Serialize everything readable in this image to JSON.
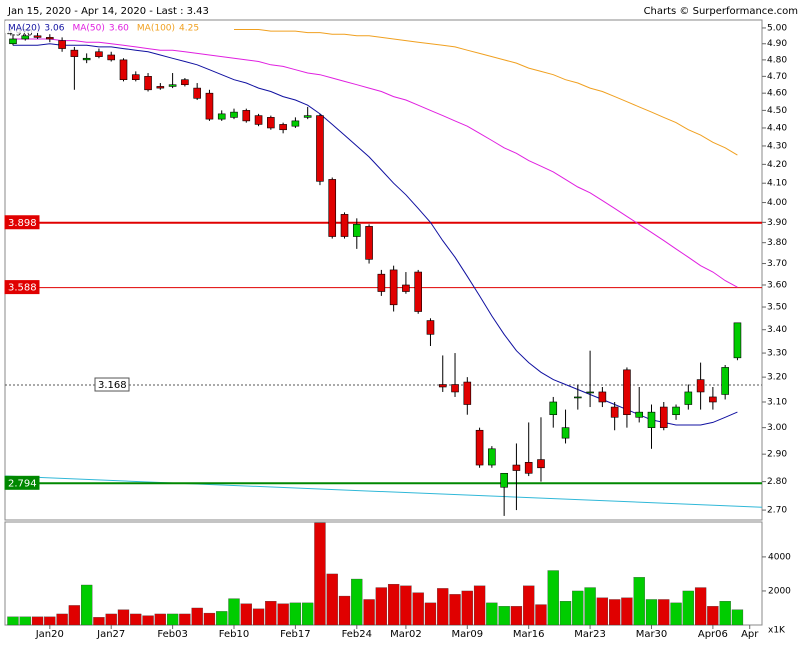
{
  "chart_data": {
    "type": "candlestick",
    "title": "Jan 15, 2020 - Apr 14, 2020 - Last : 3.43",
    "credit": "Charts © Surperformance.com",
    "annotation": "4.970",
    "log_scale": true,
    "up_color": "#00cc00",
    "down_color": "#e00000",
    "ohlc": [
      [
        4.9,
        4.96,
        4.89,
        4.93
      ],
      [
        4.93,
        4.96,
        4.92,
        4.95
      ],
      [
        4.95,
        4.97,
        4.93,
        4.94
      ],
      [
        4.94,
        4.96,
        4.91,
        4.93
      ],
      [
        4.92,
        4.94,
        4.85,
        4.87
      ],
      [
        4.86,
        4.88,
        4.62,
        4.82
      ],
      [
        4.8,
        4.84,
        4.78,
        4.81
      ],
      [
        4.85,
        4.87,
        4.81,
        4.82
      ],
      [
        4.83,
        4.85,
        4.79,
        4.8
      ],
      [
        4.8,
        4.81,
        4.67,
        4.68
      ],
      [
        4.71,
        4.73,
        4.67,
        4.68
      ],
      [
        4.7,
        4.72,
        4.61,
        4.62
      ],
      [
        4.64,
        4.66,
        4.62,
        4.63
      ],
      [
        4.64,
        4.72,
        4.63,
        4.65
      ],
      [
        4.68,
        4.69,
        4.64,
        4.65
      ],
      [
        4.63,
        4.66,
        4.56,
        4.57
      ],
      [
        4.6,
        4.62,
        4.44,
        4.45
      ],
      [
        4.45,
        4.5,
        4.44,
        4.48
      ],
      [
        4.46,
        4.51,
        4.45,
        4.49
      ],
      [
        4.5,
        4.51,
        4.43,
        4.44
      ],
      [
        4.47,
        4.48,
        4.41,
        4.42
      ],
      [
        4.46,
        4.47,
        4.39,
        4.4
      ],
      [
        4.42,
        4.43,
        4.37,
        4.39
      ],
      [
        4.41,
        4.46,
        4.4,
        4.44
      ],
      [
        4.46,
        4.52,
        4.45,
        4.47
      ],
      [
        4.47,
        4.48,
        4.09,
        4.11
      ],
      [
        4.12,
        4.13,
        3.82,
        3.83
      ],
      [
        3.94,
        3.95,
        3.82,
        3.83
      ],
      [
        3.83,
        3.92,
        3.77,
        3.89
      ],
      [
        3.88,
        3.89,
        3.7,
        3.72
      ],
      [
        3.65,
        3.67,
        3.55,
        3.57
      ],
      [
        3.67,
        3.69,
        3.48,
        3.51
      ],
      [
        3.6,
        3.66,
        3.56,
        3.57
      ],
      [
        3.66,
        3.67,
        3.47,
        3.48
      ],
      [
        3.44,
        3.45,
        3.33,
        3.38
      ],
      [
        3.17,
        3.29,
        3.14,
        3.16
      ],
      [
        3.17,
        3.3,
        3.12,
        3.14
      ],
      [
        3.18,
        3.2,
        3.05,
        3.09
      ],
      [
        2.99,
        3.0,
        2.85,
        2.86
      ],
      [
        2.86,
        2.93,
        2.85,
        2.92
      ],
      [
        2.78,
        2.83,
        2.68,
        2.83
      ],
      [
        2.86,
        2.94,
        2.7,
        2.84
      ],
      [
        2.87,
        3.02,
        2.82,
        2.83
      ],
      [
        2.88,
        3.04,
        2.8,
        2.85
      ],
      [
        3.05,
        3.12,
        3.0,
        3.1
      ],
      [
        2.96,
        3.07,
        2.94,
        3.0
      ],
      [
        3.12,
        3.17,
        3.07,
        3.12
      ],
      [
        3.14,
        3.31,
        3.08,
        3.14
      ],
      [
        3.14,
        3.16,
        3.08,
        3.1
      ],
      [
        3.08,
        3.1,
        2.99,
        3.04
      ],
      [
        3.23,
        3.24,
        3.0,
        3.05
      ],
      [
        3.04,
        3.16,
        3.02,
        3.06
      ],
      [
        3.0,
        3.09,
        2.92,
        3.06
      ],
      [
        3.08,
        3.1,
        2.99,
        3.0
      ],
      [
        3.05,
        3.09,
        3.03,
        3.08
      ],
      [
        3.09,
        3.17,
        3.07,
        3.14
      ],
      [
        3.19,
        3.26,
        3.07,
        3.14
      ],
      [
        3.12,
        3.16,
        3.07,
        3.1
      ],
      [
        3.13,
        3.25,
        3.11,
        3.24
      ],
      [
        3.28,
        3.43,
        3.27,
        3.43
      ]
    ],
    "series": [
      {
        "name": "MA(20)",
        "legend_value": "3.06",
        "color": "#1010a0",
        "values": [
          4.89,
          4.89,
          4.89,
          4.9,
          4.89,
          4.89,
          4.89,
          4.88,
          4.88,
          4.87,
          4.86,
          4.85,
          4.83,
          4.81,
          4.79,
          4.77,
          4.74,
          4.71,
          4.68,
          4.66,
          4.63,
          4.61,
          4.58,
          4.56,
          4.53,
          4.48,
          4.42,
          4.36,
          4.3,
          4.24,
          4.17,
          4.1,
          4.04,
          3.97,
          3.9,
          3.81,
          3.73,
          3.64,
          3.55,
          3.46,
          3.38,
          3.31,
          3.26,
          3.22,
          3.19,
          3.17,
          3.15,
          3.13,
          3.11,
          3.09,
          3.07,
          3.05,
          3.03,
          3.02,
          3.01,
          3.01,
          3.01,
          3.02,
          3.04,
          3.06
        ]
      },
      {
        "name": "MA(50)",
        "legend_value": "3.60",
        "color": "#e020e0",
        "values": [
          4.93,
          4.93,
          4.93,
          4.93,
          4.92,
          4.92,
          4.91,
          4.91,
          4.9,
          4.89,
          4.88,
          4.87,
          4.86,
          4.86,
          4.85,
          4.84,
          4.83,
          4.82,
          4.81,
          4.8,
          4.79,
          4.77,
          4.76,
          4.74,
          4.72,
          4.71,
          4.69,
          4.67,
          4.65,
          4.63,
          4.61,
          4.58,
          4.56,
          4.53,
          4.5,
          4.47,
          4.44,
          4.41,
          4.37,
          4.33,
          4.29,
          4.26,
          4.22,
          4.19,
          4.16,
          4.12,
          4.08,
          4.05,
          4.01,
          3.97,
          3.93,
          3.89,
          3.85,
          3.81,
          3.77,
          3.73,
          3.69,
          3.66,
          3.62,
          3.59
        ]
      },
      {
        "name": "MA(100)",
        "legend_value": "4.25",
        "color": "#f0a020",
        "values": [
          null,
          null,
          null,
          null,
          null,
          null,
          null,
          null,
          null,
          null,
          null,
          null,
          null,
          null,
          null,
          null,
          null,
          null,
          4.99,
          4.99,
          4.99,
          4.98,
          4.98,
          4.98,
          4.97,
          4.97,
          4.96,
          4.96,
          4.95,
          4.95,
          4.94,
          4.93,
          4.92,
          4.91,
          4.9,
          4.89,
          4.88,
          4.86,
          4.84,
          4.82,
          4.8,
          4.78,
          4.75,
          4.73,
          4.71,
          4.68,
          4.66,
          4.63,
          4.61,
          4.58,
          4.55,
          4.52,
          4.49,
          4.46,
          4.43,
          4.39,
          4.36,
          4.32,
          4.29,
          4.25
        ]
      }
    ],
    "levels": [
      {
        "value": 3.898,
        "color": "#e00000",
        "width": 2
      },
      {
        "value": 3.588,
        "color": "#e00000",
        "width": 1
      },
      {
        "value": 3.168,
        "color": "#555555",
        "width": 1,
        "dashed": true
      },
      {
        "value": 2.794,
        "color": "#008800",
        "width": 2
      }
    ],
    "trendline": {
      "color": "#30b8d8",
      "values": [
        2.82,
        2.71
      ]
    },
    "xlim": [
      -0.65,
      61.0
    ],
    "xticks": [
      {
        "value": 3,
        "label": "Jan20"
      },
      {
        "value": 8,
        "label": "Jan27"
      },
      {
        "value": 13,
        "label": "Feb03"
      },
      {
        "value": 18,
        "label": "Feb10"
      },
      {
        "value": 23,
        "label": "Feb17"
      },
      {
        "value": 28,
        "label": "Feb24"
      },
      {
        "value": 32,
        "label": "Mar02"
      },
      {
        "value": 37,
        "label": "Mar09"
      },
      {
        "value": 42,
        "label": "Mar16"
      },
      {
        "value": 47,
        "label": "Mar23"
      },
      {
        "value": 52,
        "label": "Mar30"
      },
      {
        "value": 57,
        "label": "Apr06"
      },
      {
        "value": 60,
        "label": "Apr"
      }
    ],
    "ylim": [
      2.666,
      5.051
    ],
    "yticks": [
      {
        "value": 5.0,
        "label": "5.00"
      },
      {
        "value": 4.9,
        "label": "4.90"
      },
      {
        "value": 4.8,
        "label": "4.80"
      },
      {
        "value": 4.7,
        "label": "4.70"
      },
      {
        "value": 4.6,
        "label": "4.60"
      },
      {
        "value": 4.5,
        "label": "4.50"
      },
      {
        "value": 4.4,
        "label": "4.40"
      },
      {
        "value": 4.3,
        "label": "4.30"
      },
      {
        "value": 4.2,
        "label": "4.20"
      },
      {
        "value": 4.1,
        "label": "4.10"
      },
      {
        "value": 4.0,
        "label": "4.00"
      },
      {
        "value": 3.9,
        "label": "3.90"
      },
      {
        "value": 3.8,
        "label": "3.80"
      },
      {
        "value": 3.7,
        "label": "3.70"
      },
      {
        "value": 3.6,
        "label": "3.60"
      },
      {
        "value": 3.5,
        "label": "3.50"
      },
      {
        "value": 3.4,
        "label": "3.40"
      },
      {
        "value": 3.3,
        "label": "3.30"
      },
      {
        "value": 3.2,
        "label": "3.20"
      },
      {
        "value": 3.1,
        "label": "3.10"
      },
      {
        "value": 3.0,
        "label": "3.00"
      },
      {
        "value": 2.9,
        "label": "2.90"
      },
      {
        "value": 2.8,
        "label": "2.80"
      },
      {
        "value": 2.7,
        "label": "2.70"
      }
    ],
    "volume": {
      "unit_label": "x1K",
      "ylim": [
        0,
        6050
      ],
      "yticks": [
        2000,
        4000
      ],
      "values": [
        480,
        480,
        480,
        480,
        650,
        1150,
        2350,
        450,
        650,
        900,
        650,
        550,
        650,
        650,
        650,
        1000,
        700,
        800,
        1550,
        1250,
        950,
        1400,
        1250,
        1300,
        1300,
        6000,
        3000,
        1700,
        2700,
        1500,
        2200,
        2400,
        2300,
        1900,
        1300,
        2150,
        1800,
        2000,
        2300,
        1300,
        1100,
        1100,
        2300,
        1200,
        3200,
        1400,
        2000,
        2200,
        1600,
        1500,
        1600,
        2800,
        1500,
        1500,
        1300,
        2000,
        2200,
        1100,
        1400,
        900
      ]
    }
  }
}
